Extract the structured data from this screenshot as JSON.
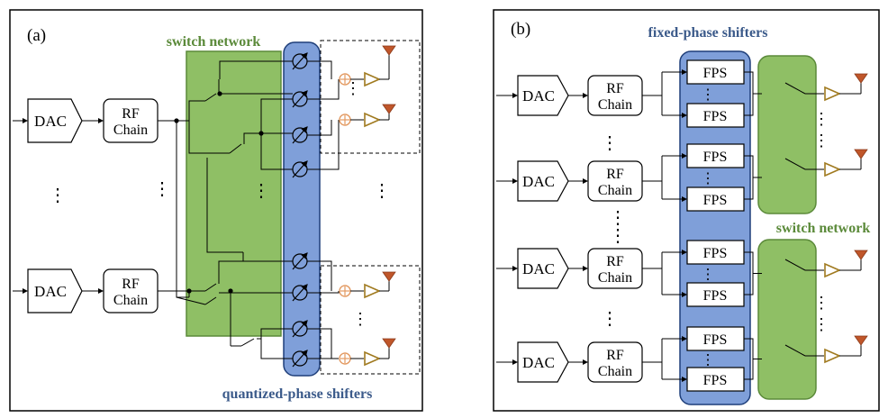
{
  "panel_a": {
    "tag": "(a)",
    "switch_network_label": "switch network",
    "phase_shifter_label": "quantized-phase shifters",
    "dac_label": "DAC",
    "rf_line1": "RF",
    "rf_line2": "Chain",
    "ellipsis": "⋮"
  },
  "panel_b": {
    "tag": "(b)",
    "fixed_phase_label": "fixed-phase shifters",
    "switch_network_label": "switch network",
    "dac_label": "DAC",
    "rf_line1": "RF",
    "rf_line2": "Chain",
    "fps_label": "FPS",
    "ellipsis": "⋮"
  },
  "colors": {
    "switch_fill": "#8fbf65",
    "switch_stroke": "#5b8a3a",
    "switch_text": "#5b8a3a",
    "shifter_fill": "#7f9fd9",
    "shifter_stroke": "#1f3f7a",
    "shifter_text": "#3b5a8a",
    "antenna": "#c0562a",
    "amp": "#a07a1f",
    "adder": "#e39a62"
  }
}
